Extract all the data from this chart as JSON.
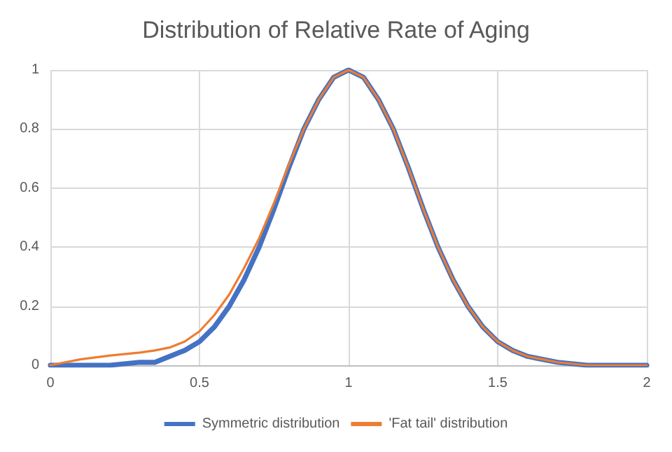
{
  "chart_data": {
    "type": "line",
    "title": "Distribution of Relative Rate of Aging",
    "x": [
      0,
      0.1,
      0.2,
      0.3,
      0.35,
      0.4,
      0.45,
      0.5,
      0.55,
      0.6,
      0.65,
      0.7,
      0.75,
      0.8,
      0.85,
      0.9,
      0.95,
      1,
      1.05,
      1.1,
      1.15,
      1.2,
      1.25,
      1.3,
      1.35,
      1.4,
      1.45,
      1.5,
      1.55,
      1.6,
      1.7,
      1.8,
      1.9,
      2
    ],
    "series": [
      {
        "name": "Symmetric distribution",
        "color": "#4472c4",
        "values": [
          0,
          0,
          0,
          0.01,
          0.01,
          0.03,
          0.05,
          0.08,
          0.13,
          0.2,
          0.29,
          0.4,
          0.53,
          0.67,
          0.8,
          0.9,
          0.975,
          1,
          0.975,
          0.9,
          0.8,
          0.67,
          0.53,
          0.4,
          0.29,
          0.2,
          0.13,
          0.08,
          0.05,
          0.03,
          0.01,
          0,
          0,
          0
        ]
      },
      {
        "name": "'Fat tail' distribution",
        "color": "#ed7d31",
        "values": [
          0,
          0.02,
          0.033,
          0.043,
          0.05,
          0.06,
          0.08,
          0.115,
          0.17,
          0.24,
          0.33,
          0.43,
          0.55,
          0.68,
          0.8,
          0.9,
          0.975,
          1,
          0.975,
          0.9,
          0.8,
          0.67,
          0.53,
          0.4,
          0.29,
          0.2,
          0.13,
          0.08,
          0.05,
          0.03,
          0.01,
          0,
          0,
          0
        ]
      }
    ],
    "xlim": [
      0,
      2
    ],
    "xticks": [
      0,
      0.5,
      1,
      1.5,
      2
    ],
    "ylim": [
      0,
      1
    ],
    "yticks": [
      0,
      0.2,
      0.4,
      0.6,
      0.8,
      1
    ],
    "grid": true,
    "legend": "bottom",
    "marker": "none",
    "line_style": "solid"
  }
}
